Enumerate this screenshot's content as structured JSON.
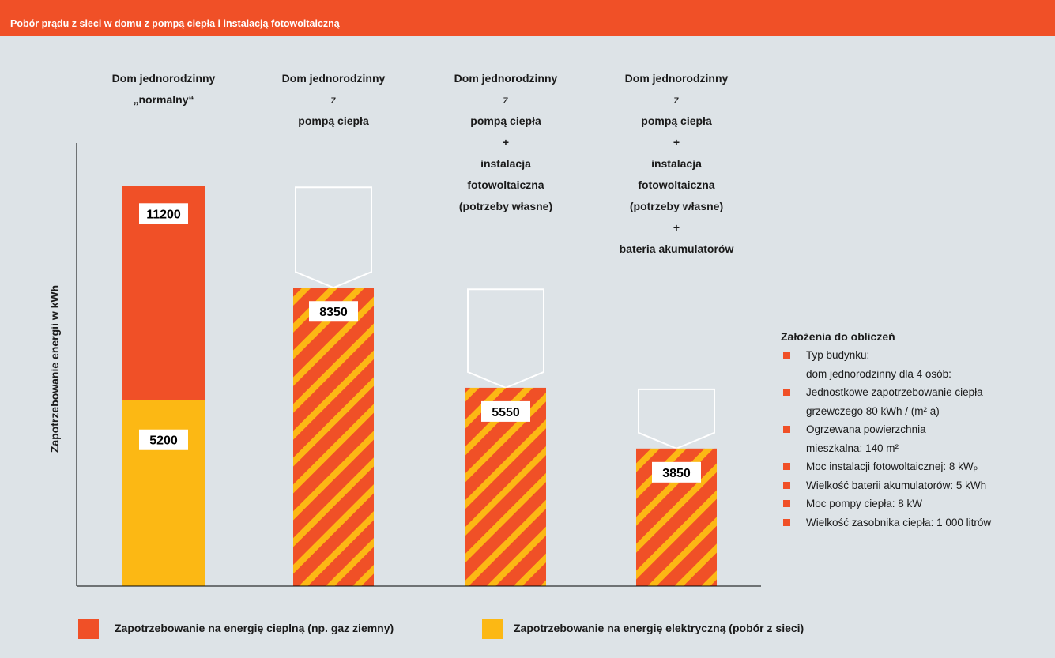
{
  "header": {
    "title": "Pobór prądu z sieci w domu z pompą ciepła i instalacją fotowoltaiczną"
  },
  "colors": {
    "heat": "#f05027",
    "electric": "#fcb814",
    "header": "#f05027",
    "background": "#dde3e7",
    "outline": "#ffffff"
  },
  "chart_data": {
    "type": "bar",
    "ylabel": "Zapotrzebowanie energii w kWh",
    "categories": [
      {
        "lines": [
          "Dom jednorodzinny",
          "„normalny“"
        ],
        "plain": []
      },
      {
        "lines": [
          "Dom jednorodzinny",
          "z",
          "pompą ciepła"
        ],
        "plain": [
          1
        ]
      },
      {
        "lines": [
          "Dom jednorodzinny",
          "z",
          "pompą ciepła",
          "+",
          "instalacja",
          "fotowoltaiczna",
          "(potrzeby własne)"
        ],
        "plain": [
          1
        ]
      },
      {
        "lines": [
          "Dom jednorodzinny",
          "z",
          "pompą ciepła",
          "+",
          "instalacja",
          "fotowoltaiczna",
          "(potrzeby własne)",
          "+",
          "bateria akumulatorów"
        ],
        "plain": [
          1
        ]
      }
    ],
    "bars": [
      {
        "style": "stacked",
        "total": 11200,
        "electric": 5200,
        "labels": [
          "11200",
          "5200"
        ]
      },
      {
        "style": "hatched",
        "value": 8350,
        "reference": 11200,
        "labels": [
          "8350"
        ]
      },
      {
        "style": "hatched",
        "value": 5550,
        "reference": 8350,
        "labels": [
          "5550"
        ]
      },
      {
        "style": "hatched",
        "value": 3850,
        "reference": 5550,
        "labels": [
          "3850"
        ]
      }
    ],
    "ylim": [
      0,
      12400
    ],
    "legend": [
      {
        "label": "Zapotrzebowanie na energię cieplną (np. gaz ziemny)",
        "color": "#f05027"
      },
      {
        "label": "Zapotrzebowanie na energię elektryczną (pobór z sieci)",
        "color": "#fcb814"
      }
    ]
  },
  "assumptions": {
    "title": "Założenia do obliczeń",
    "items": [
      {
        "lines": [
          "Typ budynku:",
          "dom jednorodzinny dla 4 osób:"
        ]
      },
      {
        "lines": [
          "Jednostkowe zapotrzebowanie ciepła",
          "grzewczego 80 kWh / (m² a)"
        ]
      },
      {
        "lines": [
          "Ogrzewana powierzchnia",
          "mieszkalna: 140 m²"
        ]
      },
      {
        "lines": [
          "Moc instalacji fotowoltaicznej: 8 kWₚ"
        ]
      },
      {
        "lines": [
          "Wielkość baterii akumulatorów: 5 kWh"
        ]
      },
      {
        "lines": [
          "Moc pompy ciepła: 8 kW"
        ]
      },
      {
        "lines": [
          "Wielkość zasobnika ciepła: 1 000 litrów"
        ]
      }
    ]
  }
}
